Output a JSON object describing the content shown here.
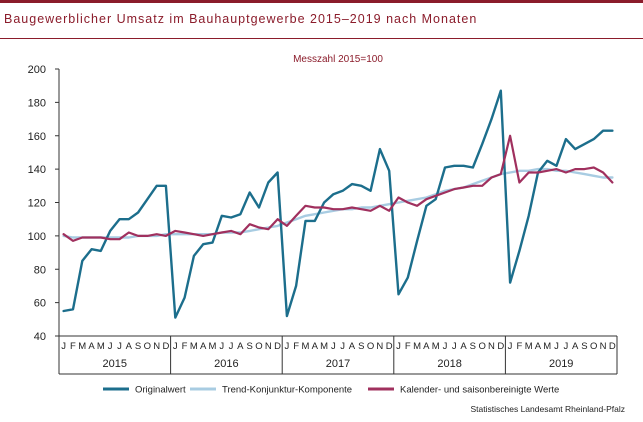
{
  "title": "Baugewerblicher Umsatz im Bauhauptgewerbe 2015–2019 nach Monaten",
  "source": "Statistisches Landesamt Rheinland-Pfalz",
  "chart_data": {
    "type": "line",
    "subtitle": "Messzahl 2015=100",
    "ylim": [
      40,
      200
    ],
    "yticks": [
      40,
      60,
      80,
      100,
      120,
      140,
      160,
      180,
      200
    ],
    "month_labels": [
      "J",
      "F",
      "M",
      "A",
      "M",
      "J",
      "J",
      "A",
      "S",
      "O",
      "N",
      "D"
    ],
    "years": [
      "2015",
      "2016",
      "2017",
      "2018",
      "2019"
    ],
    "legend_position": "bottom",
    "grid": false,
    "series": [
      {
        "name": "Originalwert",
        "color": "#1c6e8c",
        "values": [
          55,
          56,
          85,
          92,
          91,
          103,
          110,
          110,
          114,
          122,
          130,
          130,
          51,
          63,
          88,
          95,
          96,
          112,
          111,
          113,
          126,
          117,
          132,
          138,
          52,
          70,
          109,
          109,
          120,
          125,
          127,
          131,
          130,
          127,
          152,
          139,
          65,
          75,
          97,
          118,
          122,
          141,
          142,
          142,
          141,
          155,
          170,
          187,
          72,
          91,
          112,
          138,
          145,
          142,
          158,
          152,
          155,
          158,
          163,
          163
        ]
      },
      {
        "name": "Trend-Konjunktur-Komponente",
        "color": "#a8cce2",
        "values": [
          100,
          99,
          99,
          99,
          99,
          99,
          99,
          99,
          100,
          100,
          100,
          101,
          101,
          101,
          101,
          101,
          101,
          102,
          102,
          102,
          103,
          104,
          105,
          106,
          108,
          110,
          112,
          113,
          114,
          115,
          116,
          116,
          117,
          117,
          118,
          119,
          120,
          121,
          122,
          123,
          125,
          127,
          128,
          129,
          131,
          133,
          135,
          137,
          138,
          139,
          139,
          140,
          140,
          139,
          139,
          138,
          137,
          136,
          135,
          135
        ]
      },
      {
        "name": "Kalender- und saisonbereinigte Werte",
        "color": "#a0305e",
        "values": [
          101,
          97,
          99,
          99,
          99,
          98,
          98,
          102,
          100,
          100,
          101,
          100,
          103,
          102,
          101,
          100,
          101,
          102,
          103,
          101,
          107,
          105,
          104,
          110,
          106,
          112,
          118,
          117,
          117,
          116,
          116,
          117,
          116,
          115,
          118,
          115,
          123,
          120,
          118,
          122,
          124,
          126,
          128,
          129,
          130,
          130,
          135,
          137,
          160,
          132,
          138,
          138,
          139,
          140,
          138,
          140,
          140,
          141,
          138,
          132
        ]
      }
    ]
  }
}
